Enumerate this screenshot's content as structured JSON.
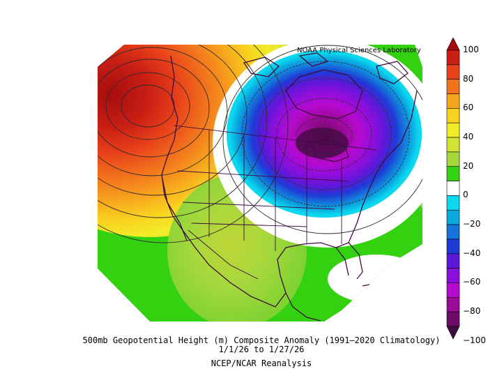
{
  "map": {
    "credit": "NOAA Physical Sciences Laboratory",
    "title_line1": "500mb Geopotential Height (m) Composite Anomaly (1991–2020 Climatology)",
    "title_line2": "1/1/26   to 1/27/26",
    "source": "NCEP/NCAR Reanalysis",
    "colors": {
      "pos100": "#a50d0d",
      "pos90": "#c81e14",
      "pos80": "#e8411a",
      "pos70": "#f2731c",
      "pos60": "#f7a41e",
      "pos50": "#f9d21f",
      "pos40": "#f1ec28",
      "pos30": "#d3e234",
      "pos20": "#a6d83d",
      "pos10": "#33d10f",
      "zero": "#ffffff",
      "neg10": "#0ad8ef",
      "neg20": "#0aa8e0",
      "neg30": "#1673da",
      "neg40": "#1e3bd6",
      "neg50": "#5a19d8",
      "neg60": "#8a0fdc",
      "neg70": "#b60ad0",
      "neg80": "#9c0a98",
      "neg90": "#6e0a68",
      "neg100": "#3e0b3c",
      "land_outline": "#3d0c3c"
    },
    "features": {
      "positive_anomaly_center": "Northeast Pacific / Gulf of Alaska",
      "negative_anomaly_center": "Hudson Bay / Great Lakes region"
    }
  },
  "colorbar": {
    "labels": [
      "100",
      "80",
      "60",
      "40",
      "20",
      "0",
      "−20",
      "−40",
      "−60",
      "−80",
      "−100"
    ]
  }
}
